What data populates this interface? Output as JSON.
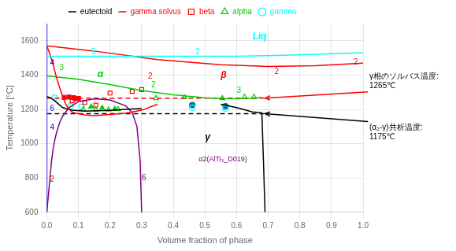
{
  "chart_data": {
    "type": "line",
    "xlabel": "Volume fraction of phase",
    "ylabel": "Temperature [°C]",
    "xlim": [
      0.0,
      1.0
    ],
    "ylim": [
      600,
      1700
    ],
    "xticks": [
      {
        "value": 0,
        "label": "0.0"
      },
      0.1,
      0.2,
      0.3,
      0.4,
      0.5,
      0.6,
      0.7,
      0.8,
      0.9,
      {
        "value": 1,
        "label": "1.0"
      }
    ],
    "yticks": [
      600,
      800,
      1000,
      1200,
      1400,
      1600
    ],
    "grid": true,
    "legend": "top",
    "series": [
      {
        "type": "line",
        "color": "cyan",
        "line_style": "solid",
        "x": [
          0.0,
          0.15,
          0.35,
          0.6,
          0.75,
          1.0
        ],
        "values": [
          1510,
          1510,
          1510,
          1510,
          1515,
          1530
        ]
      },
      {
        "type": "line",
        "color": "red",
        "line_style": "solid",
        "x": [
          0.0,
          0.15,
          0.35,
          0.55,
          0.7,
          0.85,
          1.0
        ],
        "values": [
          1570,
          1540,
          1490,
          1460,
          1450,
          1455,
          1470
        ]
      },
      {
        "type": "line",
        "color": "red",
        "line_style": "solid",
        "x": [
          0.0,
          0.01,
          0.02,
          0.03,
          0.04,
          0.05,
          0.06,
          0.07,
          0.08,
          0.09,
          0.1,
          0.12,
          0.14,
          0.155
        ],
        "values": [
          1570,
          1520,
          1460,
          1390,
          1330,
          1275,
          1230,
          1200,
          1185,
          1178,
          1175,
          1168,
          1165,
          1165
        ]
      },
      {
        "type": "line",
        "color": "red",
        "line_style": "solid",
        "x": [
          0.155,
          0.2,
          0.25,
          0.3,
          0.35
        ],
        "values": [
          1165,
          1170,
          1178,
          1195,
          1230
        ]
      },
      {
        "type": "line",
        "color": "#00cc00",
        "line_style": "solid",
        "x": [
          0.0,
          0.1,
          0.2,
          0.3,
          0.4,
          0.5,
          0.55,
          0.6,
          0.65,
          0.68
        ],
        "values": [
          1395,
          1375,
          1345,
          1310,
          1285,
          1268,
          1263,
          1262,
          1265,
          1270
        ]
      },
      {
        "type": "line",
        "color": "black",
        "line_style": "solid",
        "x": [
          0.0,
          0.01,
          0.02,
          0.03,
          0.05,
          0.08,
          0.12,
          0.18,
          0.22,
          0.25,
          0.28,
          0.3
        ],
        "values": [
          1275,
          1268,
          1258,
          1242,
          1210,
          1195,
          1190,
          1193,
          1197,
          1200,
          1203,
          1205
        ]
      },
      {
        "type": "line",
        "color": "black",
        "line_style": "solid",
        "x": [
          0.55,
          0.6,
          0.63,
          0.65,
          0.67,
          0.68,
          0.685,
          0.69
        ],
        "values": [
          1230,
          1210,
          1195,
          1185,
          1182,
          1180,
          900,
          600
        ]
      },
      {
        "type": "line",
        "color": "purple",
        "line_style": "solid",
        "x": [
          0.0,
          0.005,
          0.01,
          0.015,
          0.02,
          0.025,
          0.03,
          0.04,
          0.05,
          0.07,
          0.1,
          0.15,
          0.2,
          0.25,
          0.27,
          0.285,
          0.295,
          0.3
        ],
        "values": [
          600,
          700,
          800,
          900,
          970,
          1020,
          1060,
          1120,
          1160,
          1210,
          1245,
          1262,
          1255,
          1220,
          1180,
          1100,
          900,
          600
        ]
      },
      {
        "type": "line",
        "color": "blue",
        "line_style": "solid",
        "x": [
          0.0,
          0.0
        ],
        "values": [
          600,
          1700
        ]
      },
      {
        "name": "eutectoid",
        "type": "line",
        "color": "black",
        "line_style": "dashed",
        "x": [
          0.0,
          0.69
        ],
        "values": [
          1175,
          1175
        ]
      },
      {
        "name": "gamma solvus",
        "type": "line",
        "color": "red",
        "line_style": "dashed",
        "x": [
          0.0,
          0.69
        ],
        "values": [
          1265,
          1265
        ]
      },
      {
        "name": "beta",
        "type": "scatter",
        "color": "red",
        "marker": "open_square",
        "x": [
          0.08,
          0.12,
          0.155,
          0.2,
          0.27,
          0.3
        ],
        "values": [
          1250,
          1240,
          1225,
          1295,
          1305,
          1315
        ]
      },
      {
        "type": "scatter",
        "color": "red",
        "marker": "square",
        "x": [
          0.055,
          0.07,
          0.085,
          0.09,
          0.1
        ],
        "values": [
          1270,
          1272,
          1268,
          1262,
          1264
        ]
      },
      {
        "name": "alpha",
        "type": "scatter",
        "color": "#00cc00",
        "marker": "open_triangle",
        "x": [
          0.115,
          0.155,
          0.195,
          0.225,
          0.345,
          0.435,
          0.555,
          0.625,
          0.655
        ],
        "values": [
          1200,
          1198,
          1198,
          1202,
          1265,
          1270,
          1265,
          1272,
          1272
        ]
      },
      {
        "type": "scatter",
        "color": "#00cc00",
        "marker": "triangle",
        "x": [
          0.14,
          0.175,
          0.215
        ],
        "values": [
          1215,
          1208,
          1202
        ]
      },
      {
        "name": "gamma",
        "type": "scatter",
        "color": "cyan",
        "marker": "open_circle",
        "x": [
          0.025,
          0.075,
          0.11,
          0.46,
          0.565
        ],
        "values": [
          1268,
          1218,
          1215,
          1210,
          1205
        ]
      },
      {
        "type": "scatter",
        "color": "#007090",
        "marker": "circle",
        "x": [
          0.46,
          0.565
        ],
        "values": [
          1225,
          1218
        ]
      }
    ],
    "annotations": [
      {
        "text": "Liq",
        "x": 0.65,
        "y": 1610,
        "color": "cyan"
      },
      {
        "text": "γ",
        "x": 0.5,
        "y": 1020,
        "color": "black"
      },
      {
        "text": "5",
        "x": 0.14,
        "y": 1522,
        "color": "cyan"
      },
      {
        "text": "2",
        "x": 0.47,
        "y": 1522,
        "color": "cyan"
      },
      {
        "text": "3",
        "x": 0.04,
        "y": 1430,
        "color": "#00cc00"
      },
      {
        "text": "α",
        "x": 0.16,
        "y": 1390,
        "color": "#00cc00"
      },
      {
        "text": "2",
        "x": 0.33,
        "y": 1330,
        "color": "#00cc00"
      },
      {
        "text": "3",
        "x": 0.6,
        "y": 1295,
        "color": "#00cc00"
      },
      {
        "text": "2",
        "x": 0.32,
        "y": 1380,
        "color": "red"
      },
      {
        "text": "β",
        "x": 0.55,
        "y": 1385,
        "color": "red"
      },
      {
        "text": "2",
        "x": 0.72,
        "y": 1405,
        "color": "red"
      },
      {
        "text": "2",
        "x": 0.97,
        "y": 1462,
        "color": "red"
      },
      {
        "text": "4",
        "x": 0.01,
        "y": 1455,
        "color": "blue"
      },
      {
        "text": "6",
        "x": 0.01,
        "y": 1190,
        "color": "blue"
      },
      {
        "text": "4",
        "x": 0.01,
        "y": 1080,
        "color": "blue"
      },
      {
        "text": "2",
        "x": 0.01,
        "y": 780,
        "color": "red"
      },
      {
        "text": "6",
        "x": 0.3,
        "y": 785,
        "color": "purple"
      },
      {
        "text": "α2(AlTi₃_D019)",
        "x": 0.48,
        "y": 895,
        "color": "purple"
      },
      {
        "text": [
          "γ相のソルバス温度:",
          "1265℃"
        ],
        "x": 0.69,
        "y": 1265,
        "color": "black",
        "arrow_color": "red"
      },
      {
        "text": [
          "(α₂-γ)共析温度:",
          "1175℃"
        ],
        "x": 0.69,
        "y": 1175,
        "color": "black",
        "arrow_color": "black"
      }
    ]
  }
}
